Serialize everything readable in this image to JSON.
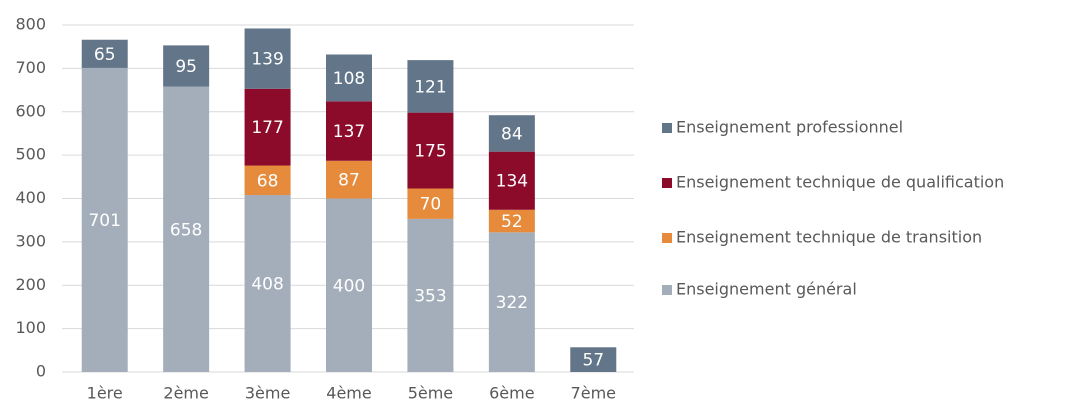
{
  "chart_data": {
    "type": "stacked_bar",
    "categories": [
      "1ère",
      "2ème",
      "3ème",
      "4ème",
      "5ème",
      "6ème",
      "7ème"
    ],
    "series": [
      {
        "name": "Enseignement général",
        "color": "#a3aeba",
        "values": [
          701,
          658,
          408,
          400,
          353,
          322,
          null
        ]
      },
      {
        "name": "Enseignement technique de transition",
        "color": "#e68a3b",
        "values": [
          null,
          null,
          68,
          87,
          70,
          52,
          null
        ]
      },
      {
        "name": "Enseignement technique de qualification",
        "color": "#8c0b2b",
        "values": [
          null,
          null,
          177,
          137,
          175,
          134,
          null
        ]
      },
      {
        "name": "Enseignement professionnel",
        "color": "#627589",
        "values": [
          65,
          95,
          139,
          108,
          121,
          84,
          57
        ]
      }
    ],
    "ylim": [
      0,
      800
    ],
    "yticks": [
      0,
      100,
      200,
      300,
      400,
      500,
      600,
      700,
      800
    ],
    "grid": true,
    "legend": "right"
  }
}
